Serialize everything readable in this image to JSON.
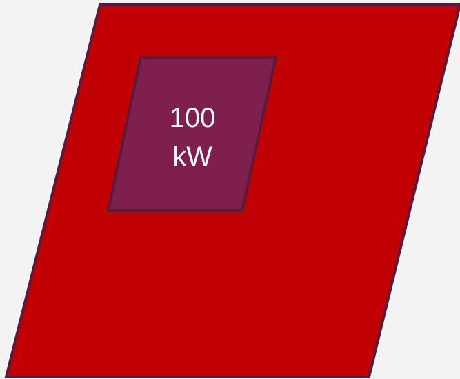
{
  "diagram": {
    "outer_shape": {
      "fill": "#c00000",
      "stroke": "#5c1a3a"
    },
    "inner_shape": {
      "fill": "#7f1f4e",
      "stroke": "#5c1a3a",
      "label_line1": "100",
      "label_line2": "kW"
    },
    "background": "#f3f3f4"
  }
}
